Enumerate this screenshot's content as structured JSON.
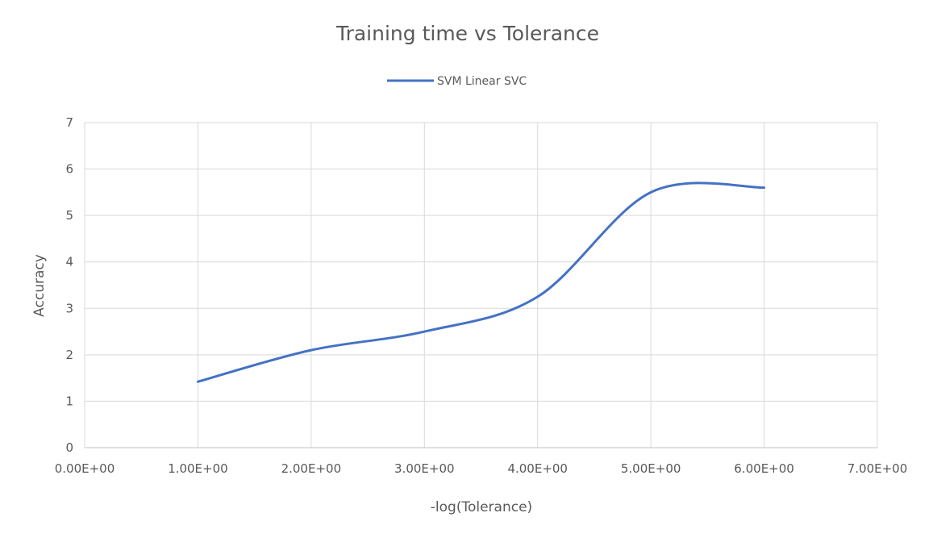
{
  "chart_data": {
    "type": "line",
    "title": "Training time vs Tolerance",
    "xlabel": "-log(Tolerance)",
    "ylabel": "Accuracy",
    "xlim": [
      0,
      7
    ],
    "ylim": [
      0,
      7
    ],
    "x_ticks": [
      0,
      1,
      2,
      3,
      4,
      5,
      6,
      7
    ],
    "x_tick_labels": [
      "0.00E+00",
      "1.00E+00",
      "2.00E+00",
      "3.00E+00",
      "4.00E+00",
      "5.00E+00",
      "6.00E+00",
      "7.00E+00"
    ],
    "y_ticks": [
      0,
      1,
      2,
      3,
      4,
      5,
      6,
      7
    ],
    "y_tick_labels": [
      "0",
      "1",
      "2",
      "3",
      "4",
      "5",
      "6",
      "7"
    ],
    "grid": true,
    "smooth": true,
    "legend_position": "top",
    "series": [
      {
        "name": "SVM Linear SVC",
        "color": "#4472c4",
        "x": [
          1,
          2,
          3,
          4,
          5,
          6
        ],
        "y": [
          1.42,
          2.1,
          2.5,
          3.25,
          5.5,
          5.6
        ]
      }
    ]
  }
}
